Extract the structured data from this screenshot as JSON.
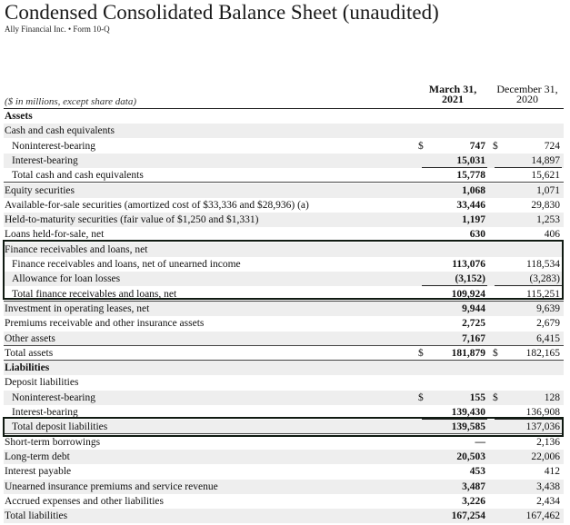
{
  "header": {
    "title": "Condensed Consolidated Balance Sheet (unaudited)",
    "subtitle": "Ally Financial Inc. • Form 10-Q",
    "units": "($ in millions, except share data)",
    "col1": "March 31, 2021",
    "col2": "December 31, 2020"
  },
  "rows": [
    {
      "label": "Assets",
      "bold": true,
      "ind": false,
      "c1": "",
      "v1": "",
      "c2": "",
      "v2": ""
    },
    {
      "label": "Cash and cash equivalents",
      "ind": false,
      "c1": "",
      "v1": "",
      "c2": "",
      "v2": ""
    },
    {
      "label": "Noninterest-bearing",
      "ind": true,
      "c1": "$",
      "v1": "747",
      "c2": "$",
      "v2": "724"
    },
    {
      "label": "Interest-bearing",
      "ind": true,
      "c1": "",
      "v1": "15,031",
      "c2": "",
      "v2": "14,897"
    },
    {
      "label": "Total cash and cash equivalents",
      "ind": true,
      "c1": "",
      "v1": "15,778",
      "c2": "",
      "v2": "15,621"
    },
    {
      "label": "Equity securities",
      "ind": false,
      "c1": "",
      "v1": "1,068",
      "c2": "",
      "v2": "1,071"
    },
    {
      "label": "Available-for-sale securities (amortized cost of $33,336 and $28,936) (a)",
      "ind": false,
      "c1": "",
      "v1": "33,446",
      "c2": "",
      "v2": "29,830"
    },
    {
      "label": "Held-to-maturity securities (fair value of $1,250 and $1,331)",
      "ind": false,
      "c1": "",
      "v1": "1,197",
      "c2": "",
      "v2": "1,253"
    },
    {
      "label": "Loans held-for-sale, net",
      "ind": false,
      "c1": "",
      "v1": "630",
      "c2": "",
      "v2": "406"
    },
    {
      "label": "Finance receivables and loans, net",
      "ind": false,
      "c1": "",
      "v1": "",
      "c2": "",
      "v2": ""
    },
    {
      "label": "Finance receivables and loans, net of unearned income",
      "ind": true,
      "c1": "",
      "v1": "113,076",
      "c2": "",
      "v2": "118,534"
    },
    {
      "label": "Allowance for loan losses",
      "ind": true,
      "c1": "",
      "v1": "(3,152)",
      "c2": "",
      "v2": "(3,283)"
    },
    {
      "label": "Total finance receivables and loans, net",
      "ind": true,
      "c1": "",
      "v1": "109,924",
      "c2": "",
      "v2": "115,251"
    },
    {
      "label": "Investment in operating leases, net",
      "ind": false,
      "c1": "",
      "v1": "9,944",
      "c2": "",
      "v2": "9,639"
    },
    {
      "label": "Premiums receivable and other insurance assets",
      "ind": false,
      "c1": "",
      "v1": "2,725",
      "c2": "",
      "v2": "2,679"
    },
    {
      "label": "Other assets",
      "ind": false,
      "c1": "",
      "v1": "7,167",
      "c2": "",
      "v2": "6,415"
    },
    {
      "label": "Total assets",
      "ind": false,
      "c1": "$",
      "v1": "181,879",
      "c2": "$",
      "v2": "182,165"
    },
    {
      "label": "Liabilities",
      "bold": true,
      "ind": false,
      "c1": "",
      "v1": "",
      "c2": "",
      "v2": ""
    },
    {
      "label": "Deposit liabilities",
      "ind": false,
      "c1": "",
      "v1": "",
      "c2": "",
      "v2": ""
    },
    {
      "label": "Noninterest-bearing",
      "ind": true,
      "c1": "$",
      "v1": "155",
      "c2": "$",
      "v2": "128"
    },
    {
      "label": "Interest-bearing",
      "ind": true,
      "c1": "",
      "v1": "139,430",
      "c2": "",
      "v2": "136,908"
    },
    {
      "label": "Total deposit liabilities",
      "ind": true,
      "c1": "",
      "v1": "139,585",
      "c2": "",
      "v2": "137,036"
    },
    {
      "label": "Short-term borrowings",
      "ind": false,
      "c1": "",
      "v1": "—",
      "c2": "",
      "v2": "2,136"
    },
    {
      "label": "Long-term debt",
      "ind": false,
      "c1": "",
      "v1": "20,503",
      "c2": "",
      "v2": "22,006"
    },
    {
      "label": "Interest payable",
      "ind": false,
      "c1": "",
      "v1": "453",
      "c2": "",
      "v2": "412"
    },
    {
      "label": "Unearned insurance premiums and service revenue",
      "ind": false,
      "c1": "",
      "v1": "3,487",
      "c2": "",
      "v2": "3,438"
    },
    {
      "label": "Accrued expenses and other liabilities",
      "ind": false,
      "c1": "",
      "v1": "3,226",
      "c2": "",
      "v2": "2,434"
    },
    {
      "label": "Total liabilities",
      "ind": false,
      "c1": "",
      "v1": "167,254",
      "c2": "",
      "v2": "167,462"
    }
  ]
}
